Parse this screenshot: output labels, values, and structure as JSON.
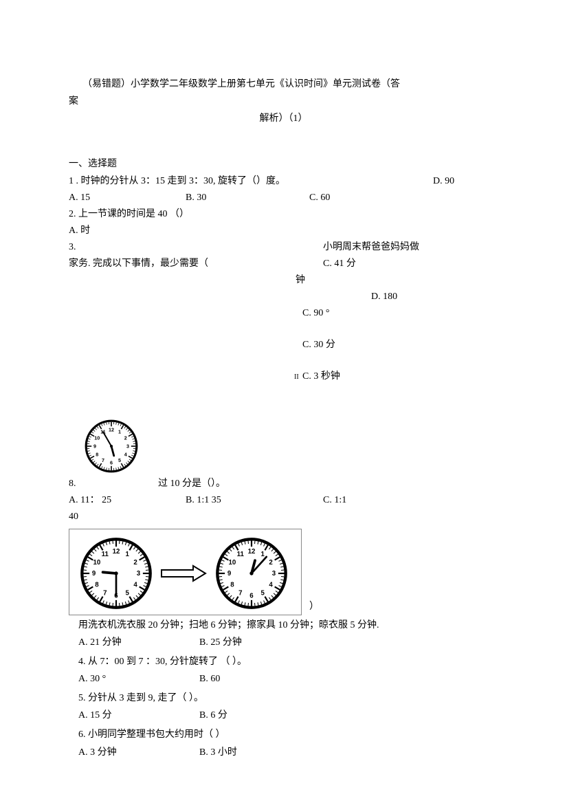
{
  "title": {
    "line1": "（易错题）小学数学二年级数学上册第七单元《认识时间》单元测试卷（答",
    "line2": "案",
    "line3": "解析）（1）"
  },
  "section1": "一、选择题",
  "q1": {
    "text": "1 . 时钟的分针从 3：15 走到 3：30, 旋转了（）度。",
    "a": "A.  15",
    "b": "B. 30",
    "c": "C.  60",
    "d": "D. 90"
  },
  "q2": {
    "text": "2.    上一节课的时间是  40 （）",
    "a": "A. 时"
  },
  "q3": {
    "num": "3.",
    "right_top": "小明周末帮爸爸妈妈做",
    "text2": "家务. 完成以下事情，最少需要（",
    "c": "C.   41  分",
    "zhong": "钟",
    "d": "D.  180",
    "c90": "C. 90 °",
    "c30": "C. 30 分",
    "c3s_pre": "II",
    "c3s": "C.  3 秒钟"
  },
  "q8": {
    "num": "8.",
    "suffix": "过 10 分是（）。",
    "a1": "A. 11： 25",
    "a2": "40",
    "b": "B.  1:1  35",
    "c": "C.  1:1"
  },
  "below": {
    "close_paren": "）",
    "task": "用洗衣机洗衣服  20 分钟；扫地 6 分钟；擦家具 10 分钟；晾衣服 5 分钟.",
    "a21": "A.  21 分钟",
    "b25": "B.  25 分钟",
    "q4": "4.  从 7：00 到 7 ：30, 分针旋转了 （      ）。",
    "q4a": "A. 30  °",
    "q4b": "B.  60",
    "q5": "5.  分针从 3 走到 9, 走了（       ）。",
    "q5a": "A.  15  分",
    "q5b": "B.  6 分",
    "q6": "6.  小明同学整理书包大约用时（      ）",
    "q6a": "A.  3 分钟",
    "q6b": "B.  3 小时"
  },
  "clock1": {
    "hour_angle": 165,
    "minute_angle": -30,
    "face": "#ffffff",
    "stroke": "#000000"
  },
  "clock_left": {
    "hour_angle": -85,
    "minute_angle": 180
  },
  "clock_right": {
    "hour_angle": 15,
    "minute_angle": 42
  }
}
